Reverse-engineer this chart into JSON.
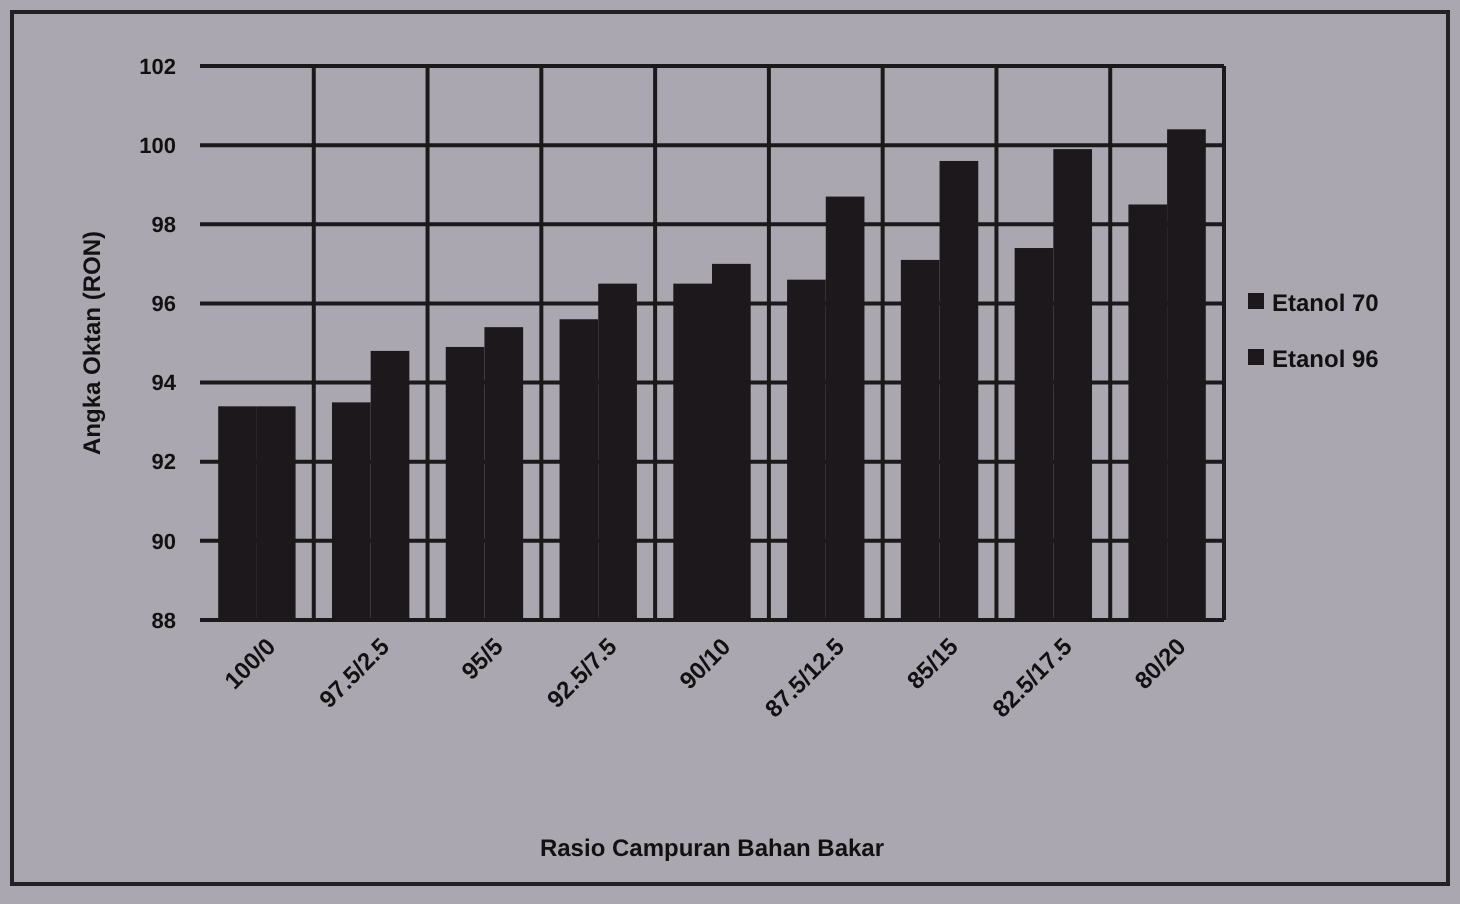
{
  "chart_data": {
    "type": "bar",
    "ylabel": "Angka Oktan (RON)",
    "xlabel": "Rasio Campuran Bahan Bakar",
    "categories": [
      "100/0",
      "97.5/2.5",
      "95/5",
      "92.5/7.5",
      "90/10",
      "87.5/12.5",
      "85/15",
      "82.5/17.5",
      "80/20"
    ],
    "series": [
      {
        "name": "Etanol 70",
        "color": "#1c181b",
        "values": [
          93.4,
          93.5,
          94.9,
          95.6,
          96.5,
          96.6,
          97.1,
          97.4,
          98.5
        ]
      },
      {
        "name": "Etanol 96",
        "color": "#1c181b",
        "values": [
          93.4,
          94.8,
          95.4,
          96.5,
          97.0,
          98.7,
          99.6,
          99.9,
          100.4
        ]
      }
    ],
    "ylim": [
      88,
      102
    ],
    "yticks": [
      88,
      90,
      92,
      94,
      96,
      98,
      100,
      102
    ],
    "grid": true,
    "legend": "right"
  }
}
